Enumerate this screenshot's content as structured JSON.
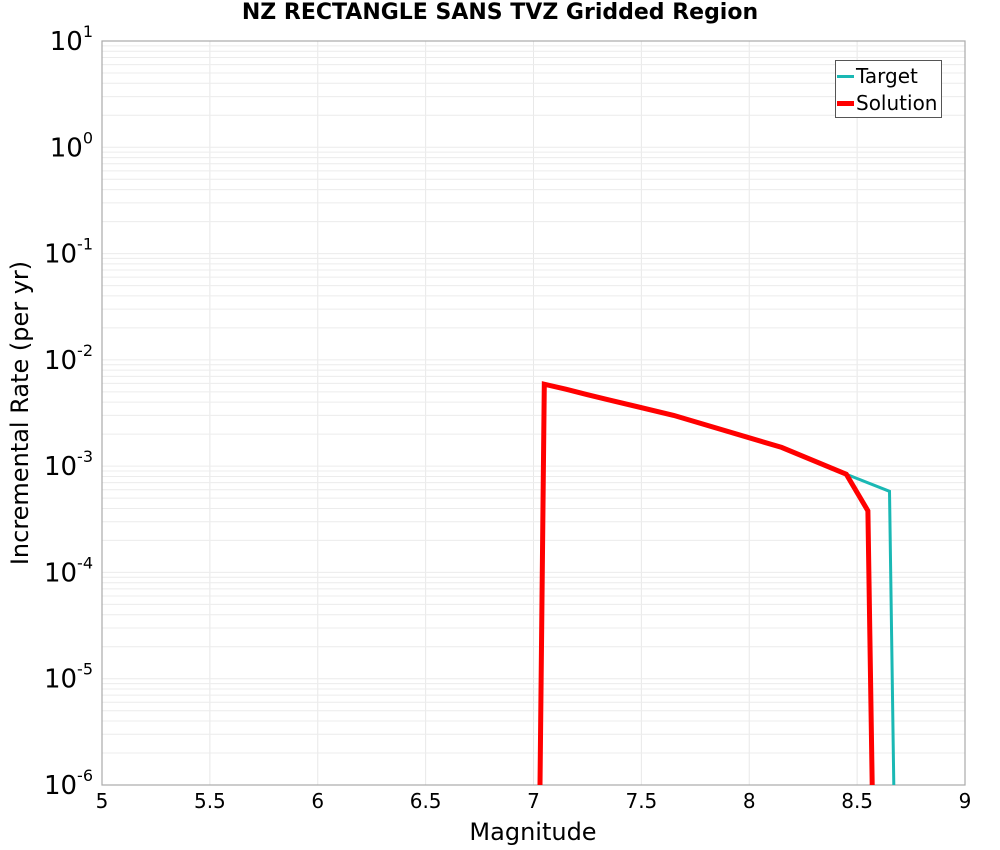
{
  "chart_data": {
    "type": "line",
    "title": "NZ RECTANGLE SANS TVZ Gridded Region",
    "xlabel": "Magnitude",
    "ylabel": "Incremental Rate (per yr)",
    "xlim": [
      5,
      9
    ],
    "ylim": [
      1e-06,
      10
    ],
    "yscale": "log",
    "grid": true,
    "legend_position": "upper right",
    "x_ticks": [
      "5",
      "5.5",
      "6",
      "6.5",
      "7",
      "7.5",
      "8",
      "8.5",
      "9"
    ],
    "y_ticks": [
      {
        "base": "10",
        "exp": "1"
      },
      {
        "base": "10",
        "exp": "0"
      },
      {
        "base": "10",
        "exp": "-1"
      },
      {
        "base": "10",
        "exp": "-2"
      },
      {
        "base": "10",
        "exp": "-3"
      },
      {
        "base": "10",
        "exp": "-4"
      },
      {
        "base": "10",
        "exp": "-5"
      },
      {
        "base": "10",
        "exp": "-6"
      }
    ],
    "series": [
      {
        "name": "Target",
        "color": "#1ab8b4",
        "line_width": 3,
        "x": [
          7.03,
          7.05,
          7.15,
          7.25,
          7.35,
          7.65,
          8.15,
          8.45,
          8.65,
          8.67
        ],
        "y": [
          1e-06,
          0.0059,
          0.0053,
          0.0047,
          0.0042,
          0.003,
          0.0015,
          0.00084,
          0.00058,
          1e-06
        ]
      },
      {
        "name": "Solution",
        "color": "#ff0000",
        "line_width": 5,
        "x": [
          7.03,
          7.05,
          7.15,
          7.25,
          7.35,
          7.65,
          8.15,
          8.45,
          8.55,
          8.57
        ],
        "y": [
          1e-06,
          0.0059,
          0.0053,
          0.0047,
          0.0042,
          0.003,
          0.0015,
          0.00084,
          0.00038,
          1e-06
        ]
      }
    ]
  },
  "legend": {
    "items": [
      {
        "label": "Target",
        "color": "#1ab8b4"
      },
      {
        "label": "Solution",
        "color": "#ff0000"
      }
    ]
  }
}
